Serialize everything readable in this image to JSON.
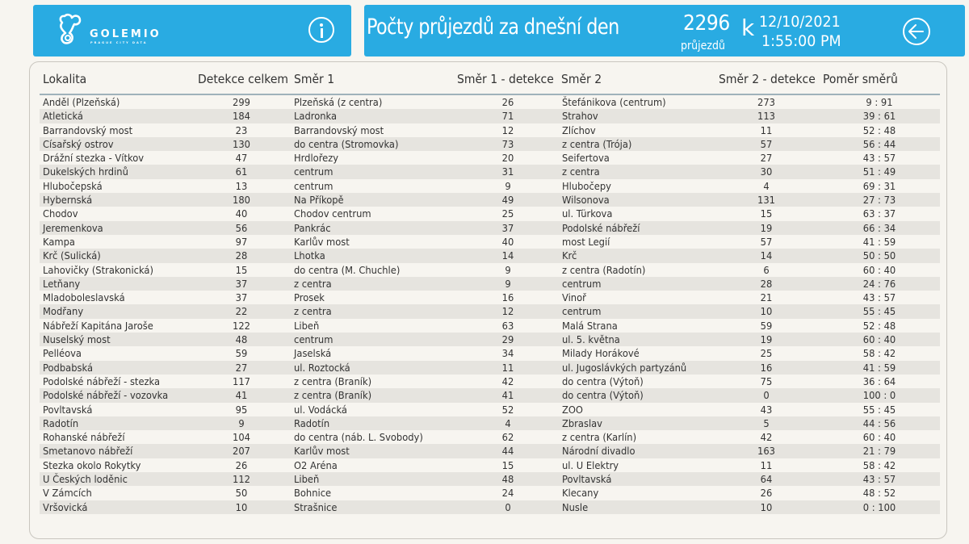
{
  "header": {
    "logo_text": "GOLEMIO",
    "logo_subtext": "PRAGUE CITY DATA",
    "info_icon": "info-circle-icon",
    "title": "Počty průjezdů za dnešní den",
    "total_count": "2296",
    "total_count_label": "průjezdů",
    "k_label": "k",
    "date": "12/10/2021",
    "time": "1:55:00 PM",
    "back_icon": "arrow-left-circle-icon"
  },
  "colors": {
    "header_bg": "#29abe2",
    "page_bg": "#f7f5f0",
    "row_alt_bg": "#e6e4df",
    "header_rule": "#9fb2ba"
  },
  "table": {
    "columns": [
      "Lokalita",
      "Detekce celkem",
      "Směr 1",
      "Směr 1 - detekce",
      "Směr 2",
      "Směr 2 - detekce",
      "Poměr směrů"
    ],
    "rows": [
      [
        "Anděl (Plzeňská)",
        "299",
        "Plzeňská (z centra)",
        "26",
        "Štefánikova (centrum)",
        "273",
        "9 : 91"
      ],
      [
        "Atletická",
        "184",
        "Ladronka",
        "71",
        "Strahov",
        "113",
        "39 : 61"
      ],
      [
        "Barrandovský most",
        "23",
        "Barrandovský most",
        "12",
        "Zlíchov",
        "11",
        "52 : 48"
      ],
      [
        "Císařský ostrov",
        "130",
        "do centra (Stromovka)",
        "73",
        "z centra (Trója)",
        "57",
        "56 : 44"
      ],
      [
        "Drážní stezka - Vítkov",
        "47",
        "Hrdlořezy",
        "20",
        "Seifertova",
        "27",
        "43 : 57"
      ],
      [
        "Dukelských hrdinů",
        "61",
        "centrum",
        "31",
        "z centra",
        "30",
        "51 : 49"
      ],
      [
        "Hlubočepská",
        "13",
        "centrum",
        "9",
        "Hlubočepy",
        "4",
        "69 : 31"
      ],
      [
        "Hybernská",
        "180",
        "Na Příkopě",
        "49",
        "Wilsonova",
        "131",
        "27 : 73"
      ],
      [
        "Chodov",
        "40",
        "Chodov centrum",
        "25",
        "ul. Türkova",
        "15",
        "63 : 37"
      ],
      [
        "Jeremenkova",
        "56",
        "Pankrác",
        "37",
        "Podolské nábřeží",
        "19",
        "66 : 34"
      ],
      [
        "Kampa",
        "97",
        "Karlův most",
        "40",
        "most Legií",
        "57",
        "41 : 59"
      ],
      [
        "Krč (Sulická)",
        "28",
        "Lhotka",
        "14",
        "Krč",
        "14",
        "50 : 50"
      ],
      [
        "Lahovičky (Strakonická)",
        "15",
        "do centra (M. Chuchle)",
        "9",
        "z centra (Radotín)",
        "6",
        "60 : 40"
      ],
      [
        "Letňany",
        "37",
        "z centra",
        "9",
        "centrum",
        "28",
        "24 : 76"
      ],
      [
        "Mladoboleslavská",
        "37",
        "Prosek",
        "16",
        "Vinoř",
        "21",
        "43 : 57"
      ],
      [
        "Modřany",
        "22",
        "z centra",
        "12",
        "centrum",
        "10",
        "55 : 45"
      ],
      [
        "Nábřeží Kapitána Jaroše",
        "122",
        "Libeň",
        "63",
        "Malá Strana",
        "59",
        "52 : 48"
      ],
      [
        "Nuselský most",
        "48",
        "centrum",
        "29",
        "ul. 5. května",
        "19",
        "60 : 40"
      ],
      [
        "Pelléova",
        "59",
        "Jaselská",
        "34",
        "Milady Horákové",
        "25",
        "58 : 42"
      ],
      [
        "Podbabská",
        "27",
        "ul. Roztocká",
        "11",
        "ul. Jugoslávkých partyzánů",
        "16",
        "41 : 59"
      ],
      [
        "Podolské nábřeží - stezka",
        "117",
        "z centra (Braník)",
        "42",
        "do centra (Výtoň)",
        "75",
        "36 : 64"
      ],
      [
        "Podolské nábřeží - vozovka",
        "41",
        "z centra (Braník)",
        "41",
        "do centra (Výtoň)",
        "0",
        "100 : 0"
      ],
      [
        "Povltavská",
        "95",
        "ul. Vodácká",
        "52",
        "ZOO",
        "43",
        "55 : 45"
      ],
      [
        "Radotín",
        "9",
        "Radotín",
        "4",
        "Zbraslav",
        "5",
        "44 : 56"
      ],
      [
        "Rohanské nábřeží",
        "104",
        "do centra (náb. L. Svobody)",
        "62",
        "z centra (Karlín)",
        "42",
        "60 : 40"
      ],
      [
        "Smetanovo nábřeží",
        "207",
        "Karlův most",
        "44",
        "Národní divadlo",
        "163",
        "21 : 79"
      ],
      [
        "Stezka okolo Rokytky",
        "26",
        "O2 Aréna",
        "15",
        "ul. U Elektry",
        "11",
        "58 : 42"
      ],
      [
        "U Českých loděnic",
        "112",
        "Libeň",
        "48",
        "Povltavská",
        "64",
        "43 : 57"
      ],
      [
        "V Zámcích",
        "50",
        "Bohnice",
        "24",
        "Klecany",
        "26",
        "48 : 52"
      ],
      [
        "Vršovická",
        "10",
        "Strašnice",
        "0",
        "Nusle",
        "10",
        "0 : 100"
      ]
    ]
  }
}
